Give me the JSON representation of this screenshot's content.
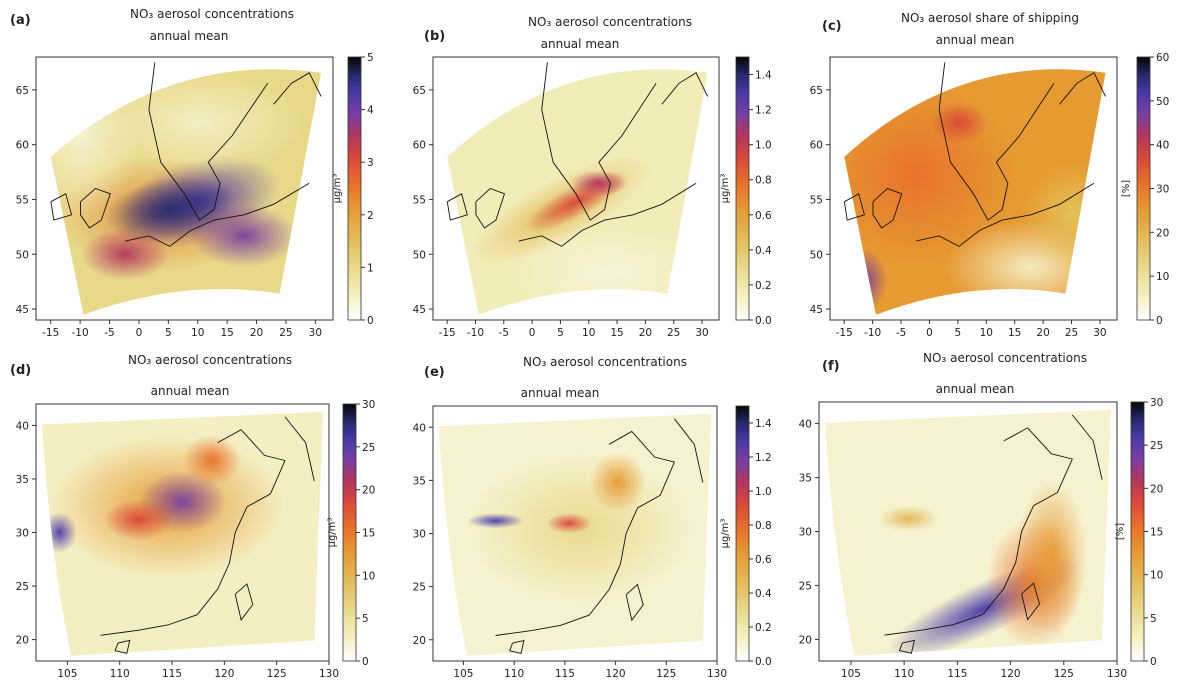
{
  "figure": {
    "panels": [
      {
        "id": "a",
        "label": "(a)",
        "title": "NO₃ aerosol concentrations",
        "subtitle": "annual mean",
        "region": "europe",
        "x_ticks": [
          "-15",
          "-10",
          "-5",
          "0",
          "5",
          "10",
          "15",
          "20",
          "25",
          "30"
        ],
        "y_ticks": [
          "45",
          "50",
          "55",
          "60",
          "65"
        ],
        "colorbar": {
          "ticks": [
            "0",
            "1",
            "2",
            "3",
            "4",
            "5"
          ],
          "unit": "μg/m³",
          "range": [
            0,
            5
          ]
        }
      },
      {
        "id": "b",
        "label": "(b)",
        "title": "NO₃ aerosol concentrations",
        "subtitle": "annual mean",
        "region": "europe",
        "x_ticks": [
          "-15",
          "-10",
          "-5",
          "0",
          "5",
          "10",
          "15",
          "20",
          "25",
          "30"
        ],
        "y_ticks": [
          "45",
          "50",
          "55",
          "60",
          "65"
        ],
        "colorbar": {
          "ticks": [
            "0.0",
            "0.2",
            "0.4",
            "0.6",
            "0.8",
            "1.0",
            "1.2",
            "1.4"
          ],
          "unit": "μg/m³",
          "range": [
            0,
            1.5
          ]
        }
      },
      {
        "id": "c",
        "label": "(c)",
        "title": "NO₃ aerosol share of shipping",
        "subtitle": "annual mean",
        "region": "europe",
        "x_ticks": [
          "-15",
          "-10",
          "-5",
          "0",
          "5",
          "10",
          "15",
          "20",
          "25",
          "30"
        ],
        "y_ticks": [
          "45",
          "50",
          "55",
          "60",
          "65"
        ],
        "colorbar": {
          "ticks": [
            "0",
            "10",
            "20",
            "30",
            "40",
            "50",
            "60"
          ],
          "unit": "[%]",
          "range": [
            0,
            60
          ]
        }
      },
      {
        "id": "d",
        "label": "(d)",
        "title": "NO₃ aerosol concentrations",
        "subtitle": "annual mean",
        "region": "china",
        "x_ticks": [
          "105",
          "110",
          "115",
          "120",
          "125",
          "130"
        ],
        "y_ticks": [
          "20",
          "25",
          "30",
          "35",
          "40"
        ],
        "colorbar": {
          "ticks": [
            "0",
            "5",
            "10",
            "15",
            "20",
            "25",
            "30"
          ],
          "unit": "μg/m³",
          "range": [
            0,
            30
          ]
        }
      },
      {
        "id": "e",
        "label": "(e)",
        "title": "NO₃ aerosol concentrations",
        "subtitle": "annual mean",
        "region": "china",
        "x_ticks": [
          "105",
          "110",
          "115",
          "120",
          "125",
          "130"
        ],
        "y_ticks": [
          "20",
          "25",
          "30",
          "35",
          "40"
        ],
        "colorbar": {
          "ticks": [
            "0.0",
            "0.2",
            "0.4",
            "0.6",
            "0.8",
            "1.0",
            "1.2",
            "1.4"
          ],
          "unit": "μg/m³",
          "range": [
            0,
            1.5
          ]
        }
      },
      {
        "id": "f",
        "label": "(f)",
        "title": "NO₃ aerosol concentrations",
        "subtitle": "annual mean",
        "region": "china",
        "x_ticks": [
          "105",
          "110",
          "115",
          "120",
          "125",
          "130"
        ],
        "y_ticks": [
          "20",
          "25",
          "30",
          "35",
          "40"
        ],
        "colorbar": {
          "ticks": [
            "0",
            "5",
            "10",
            "15",
            "20",
            "25",
            "30"
          ],
          "unit": "[%]",
          "range": [
            0,
            30
          ]
        }
      }
    ],
    "colors": {
      "scale": [
        "#fdfdf3",
        "#f4f0c0",
        "#ece08a",
        "#e2c55a",
        "#e1a43a",
        "#e3852a",
        "#e8622a",
        "#d8453c",
        "#b0345f",
        "#7d3e9f",
        "#4b3aa0",
        "#2a2a6e",
        "#0b0b1a"
      ]
    }
  }
}
